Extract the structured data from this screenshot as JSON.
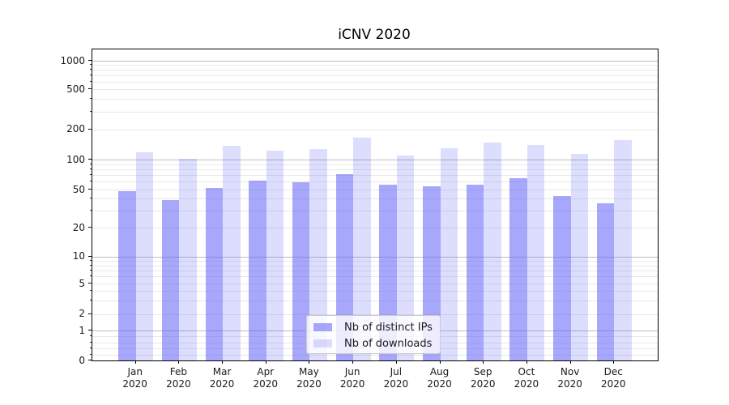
{
  "chart_data": {
    "type": "bar",
    "title": "iCNV 2020",
    "categories": [
      "Jan",
      "Feb",
      "Mar",
      "Apr",
      "May",
      "Jun",
      "Jul",
      "Aug",
      "Sep",
      "Oct",
      "Nov",
      "Dec"
    ],
    "year": "2020",
    "series": [
      {
        "name": "Nb of distinct IPs",
        "color": "rgba(100,100,248,0.57)",
        "values": [
          48,
          39,
          52,
          61,
          59,
          72,
          56,
          54,
          56,
          65,
          43,
          36
        ]
      },
      {
        "name": "Nb of downloads",
        "color": "rgba(100,100,248,0.22)",
        "values": [
          119,
          101,
          137,
          123,
          128,
          165,
          110,
          130,
          149,
          141,
          114,
          156
        ]
      }
    ],
    "y_ticks": [
      "0",
      "1",
      "2",
      "5",
      "10",
      "20",
      "50",
      "100",
      "200",
      "500",
      "1000"
    ],
    "y_scale": "symlog",
    "ylim": [
      0,
      1300
    ],
    "grid": true,
    "legend_position": "lower center"
  },
  "colors": {
    "major_grid": "#bdbdbd",
    "minor_grid": "#e8e8e8",
    "spine": "#000000",
    "text": "#1a1a1a"
  }
}
